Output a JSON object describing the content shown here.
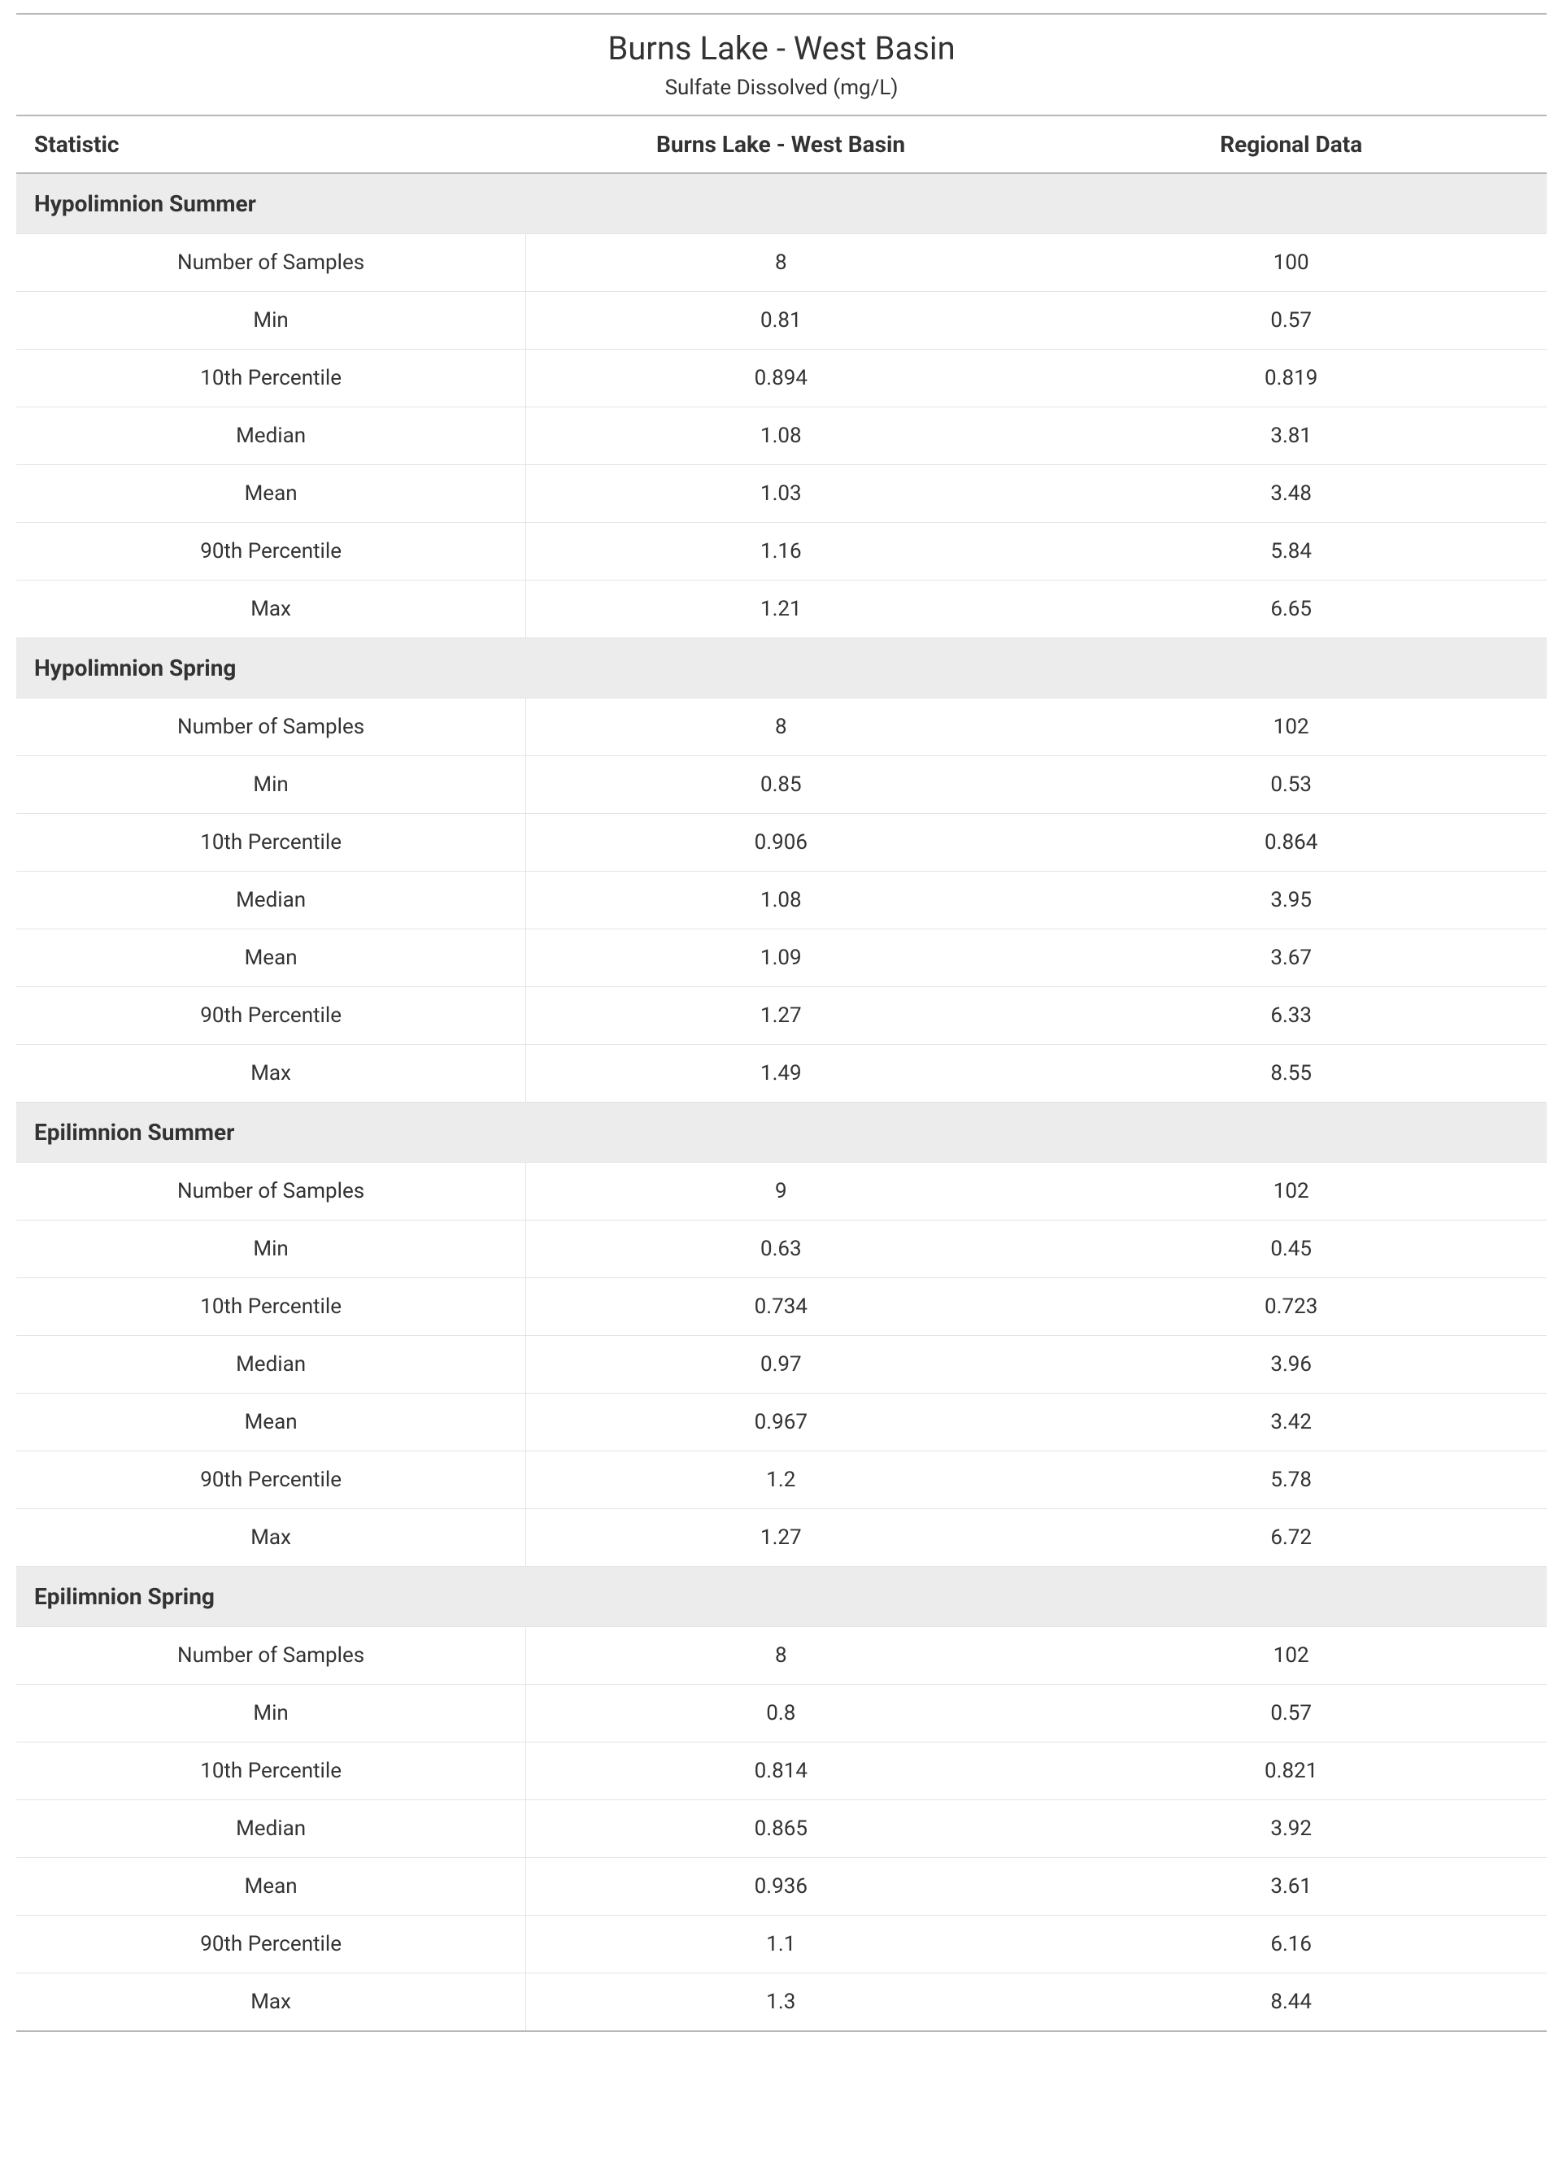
{
  "title": "Burns Lake - West Basin",
  "subtitle": "Sulfate Dissolved (mg/L)",
  "columns": {
    "statistic": "Statistic",
    "site": "Burns Lake - West Basin",
    "regional": "Regional Data"
  },
  "stat_labels": [
    "Number of Samples",
    "Min",
    "10th Percentile",
    "Median",
    "Mean",
    "90th Percentile",
    "Max"
  ],
  "sections": [
    {
      "name": "Hypolimnion Summer",
      "rows": [
        {
          "site": "8",
          "regional": "100"
        },
        {
          "site": "0.81",
          "regional": "0.57"
        },
        {
          "site": "0.894",
          "regional": "0.819"
        },
        {
          "site": "1.08",
          "regional": "3.81"
        },
        {
          "site": "1.03",
          "regional": "3.48"
        },
        {
          "site": "1.16",
          "regional": "5.84"
        },
        {
          "site": "1.21",
          "regional": "6.65"
        }
      ]
    },
    {
      "name": "Hypolimnion Spring",
      "rows": [
        {
          "site": "8",
          "regional": "102"
        },
        {
          "site": "0.85",
          "regional": "0.53"
        },
        {
          "site": "0.906",
          "regional": "0.864"
        },
        {
          "site": "1.08",
          "regional": "3.95"
        },
        {
          "site": "1.09",
          "regional": "3.67"
        },
        {
          "site": "1.27",
          "regional": "6.33"
        },
        {
          "site": "1.49",
          "regional": "8.55"
        }
      ]
    },
    {
      "name": "Epilimnion Summer",
      "rows": [
        {
          "site": "9",
          "regional": "102"
        },
        {
          "site": "0.63",
          "regional": "0.45"
        },
        {
          "site": "0.734",
          "regional": "0.723"
        },
        {
          "site": "0.97",
          "regional": "3.96"
        },
        {
          "site": "0.967",
          "regional": "3.42"
        },
        {
          "site": "1.2",
          "regional": "5.78"
        },
        {
          "site": "1.27",
          "regional": "6.72"
        }
      ]
    },
    {
      "name": "Epilimnion Spring",
      "rows": [
        {
          "site": "8",
          "regional": "102"
        },
        {
          "site": "0.8",
          "regional": "0.57"
        },
        {
          "site": "0.814",
          "regional": "0.821"
        },
        {
          "site": "0.865",
          "regional": "3.92"
        },
        {
          "site": "0.936",
          "regional": "3.61"
        },
        {
          "site": "1.1",
          "regional": "6.16"
        },
        {
          "site": "1.3",
          "regional": "8.44"
        }
      ]
    }
  ],
  "style": {
    "title_fontsize": 40,
    "subtitle_fontsize": 26,
    "header_fontsize": 28,
    "section_fontsize": 28,
    "cell_fontsize": 26,
    "text_color": "#333333",
    "section_bg": "#ececec",
    "row_border_color": "#e4e4e4",
    "heavy_border_color": "#b8b8b8",
    "background_color": "#ffffff"
  }
}
